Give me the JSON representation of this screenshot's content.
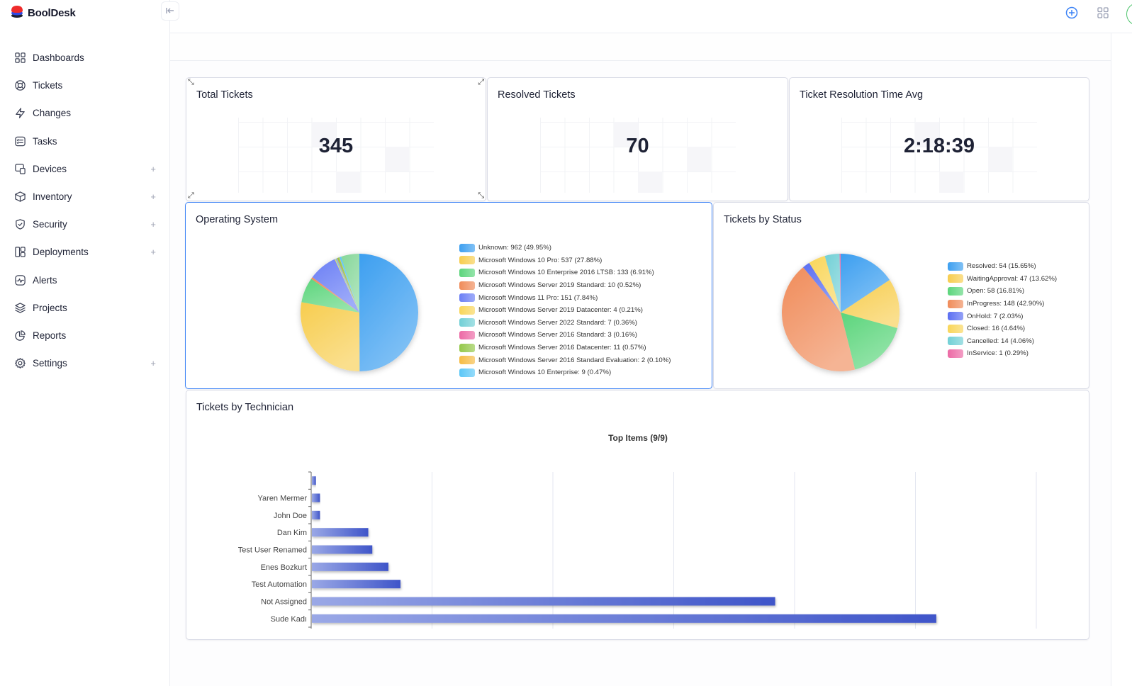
{
  "app": {
    "name": "BoolDesk"
  },
  "sidebar": {
    "collapse_icon": "collapse-left-icon",
    "items": [
      {
        "label": "Dashboards",
        "icon": "dashboard-grid-icon",
        "expandable": false
      },
      {
        "label": "Tickets",
        "icon": "lifebuoy-icon",
        "expandable": false
      },
      {
        "label": "Changes",
        "icon": "lightning-icon",
        "expandable": false
      },
      {
        "label": "Tasks",
        "icon": "checklist-icon",
        "expandable": false
      },
      {
        "label": "Devices",
        "icon": "devices-icon",
        "expandable": true
      },
      {
        "label": "Inventory",
        "icon": "box-icon",
        "expandable": true
      },
      {
        "label": "Security",
        "icon": "shield-check-icon",
        "expandable": true
      },
      {
        "label": "Deployments",
        "icon": "layout-icon",
        "expandable": true
      },
      {
        "label": "Alerts",
        "icon": "activity-icon",
        "expandable": false
      },
      {
        "label": "Projects",
        "icon": "layers-icon",
        "expandable": false
      },
      {
        "label": "Reports",
        "icon": "pie-report-icon",
        "expandable": false
      },
      {
        "label": "Settings",
        "icon": "gear-icon",
        "expandable": true
      }
    ],
    "expand_symbol": "+"
  },
  "topbar": {
    "actions": [
      {
        "name": "add-icon",
        "color": "#3b82f6"
      },
      {
        "name": "apps-grid-icon",
        "color": "#9aa0b4"
      }
    ],
    "avatar_ring_color": "#4cc46b"
  },
  "widgets": {
    "total_tickets": {
      "title": "Total Tickets",
      "value": "345"
    },
    "resolved_tickets": {
      "title": "Resolved Tickets",
      "value": "70"
    },
    "resolution_time": {
      "title": "Ticket Resolution Time Avg",
      "value": "2:18:39"
    },
    "operating_system": {
      "title": "Operating System"
    },
    "tickets_by_status": {
      "title": "Tickets by Status"
    },
    "tickets_by_technician": {
      "title": "Tickets by Technician"
    }
  },
  "chart_data": [
    {
      "id": "operating_system",
      "type": "pie",
      "title": "Operating System",
      "legend_position": "right",
      "slices": [
        {
          "label": "Unknown",
          "value": 962,
          "percent": 49.95,
          "color": "#3d9ff0",
          "legend": "Unknown: 962 (49.95%)"
        },
        {
          "label": "Microsoft Windows 10 Pro",
          "value": 537,
          "percent": 27.88,
          "color": "#f7cd4f",
          "legend": "Microsoft Windows 10 Pro: 537 (27.88%)"
        },
        {
          "label": "Microsoft Windows 10 Enterprise 2016 LTSB",
          "value": 133,
          "percent": 6.91,
          "color": "#5cd57c",
          "legend": "Microsoft Windows 10 Enterprise 2016 LTSB: 133 (6.91%)"
        },
        {
          "label": "Microsoft Windows Server 2019 Standard",
          "value": 10,
          "percent": 0.52,
          "color": "#f08c5a",
          "legend": "Microsoft Windows Server 2019 Standard: 10 (0.52%)"
        },
        {
          "label": "Microsoft Windows 11 Pro",
          "value": 151,
          "percent": 7.84,
          "color": "#6b7ff5",
          "legend": "Microsoft Windows 11 Pro: 151 (7.84%)"
        },
        {
          "label": "Microsoft Windows Server 2019 Datacenter",
          "value": 4,
          "percent": 0.21,
          "color": "#f9d65a",
          "legend": "Microsoft Windows Server 2019 Datacenter: 4 (0.21%)"
        },
        {
          "label": "Microsoft Windows Server 2022 Standard",
          "value": 7,
          "percent": 0.36,
          "color": "#72d0d6",
          "legend": "Microsoft Windows Server 2022 Standard: 7 (0.36%)"
        },
        {
          "label": "Microsoft Windows Server 2016 Standard",
          "value": 3,
          "percent": 0.16,
          "color": "#ec6aa5",
          "legend": "Microsoft Windows Server 2016 Standard: 3 (0.16%)"
        },
        {
          "label": "Microsoft Windows Server 2016 Datacenter",
          "value": 11,
          "percent": 0.57,
          "color": "#94c84a",
          "legend": "Microsoft Windows Server 2016 Datacenter: 11 (0.57%)"
        },
        {
          "label": "Microsoft Windows Server 2016 Standard Evaluation",
          "value": 2,
          "percent": 0.1,
          "color": "#f6bc45",
          "legend": "Microsoft Windows Server 2016 Standard Evaluation: 2 (0.10%)"
        },
        {
          "label": "Microsoft Windows 10 Enterprise",
          "value": 9,
          "percent": 0.47,
          "color": "#5cc7f7",
          "legend": "Microsoft Windows 10 Enterprise: 9 (0.47%)"
        }
      ],
      "unlisted_color": "#86d79a"
    },
    {
      "id": "tickets_by_status",
      "type": "pie",
      "title": "Tickets by Status",
      "legend_position": "right",
      "slices": [
        {
          "label": "Resolved",
          "value": 54,
          "percent": 15.65,
          "color": "#3d9ff0",
          "legend": "Resolved: 54 (15.65%)"
        },
        {
          "label": "WaitingApproval",
          "value": 47,
          "percent": 13.62,
          "color": "#f7cd4f",
          "legend": "WaitingApproval: 47 (13.62%)"
        },
        {
          "label": "Open",
          "value": 58,
          "percent": 16.81,
          "color": "#5cd57c",
          "legend": "Open: 58 (16.81%)"
        },
        {
          "label": "InProgress",
          "value": 148,
          "percent": 42.9,
          "color": "#f08c5a",
          "legend": "InProgress: 148 (42.90%)"
        },
        {
          "label": "OnHold",
          "value": 7,
          "percent": 2.03,
          "color": "#5b6ff2",
          "legend": "OnHold: 7 (2.03%)"
        },
        {
          "label": "Closed",
          "value": 16,
          "percent": 4.64,
          "color": "#f9d65a",
          "legend": "Closed: 16 (4.64%)"
        },
        {
          "label": "Cancelled",
          "value": 14,
          "percent": 4.06,
          "color": "#72d0d6",
          "legend": "Cancelled: 14 (4.06%)"
        },
        {
          "label": "InService",
          "value": 1,
          "percent": 0.29,
          "color": "#ec6aa5",
          "legend": "InService: 1 (0.29%)"
        }
      ]
    },
    {
      "id": "tickets_by_technician",
      "type": "bar",
      "orientation": "horizontal",
      "title": "Top Items (9/9)",
      "xlabel": "",
      "ylabel": "",
      "categories": [
        "",
        "Yaren Mermer",
        "John Doe",
        "Dan Kim",
        "Test User Renamed",
        "Enes Bozkurt",
        "Test Automation",
        "Not Assigned",
        "Sude Kadı"
      ],
      "values": [
        1,
        2,
        2,
        14,
        15,
        19,
        22,
        115,
        155
      ],
      "xlim": [
        0,
        180
      ],
      "grid": true,
      "bar_color_start": "#9aa8e6",
      "bar_color_end": "#3f55c9"
    }
  ]
}
